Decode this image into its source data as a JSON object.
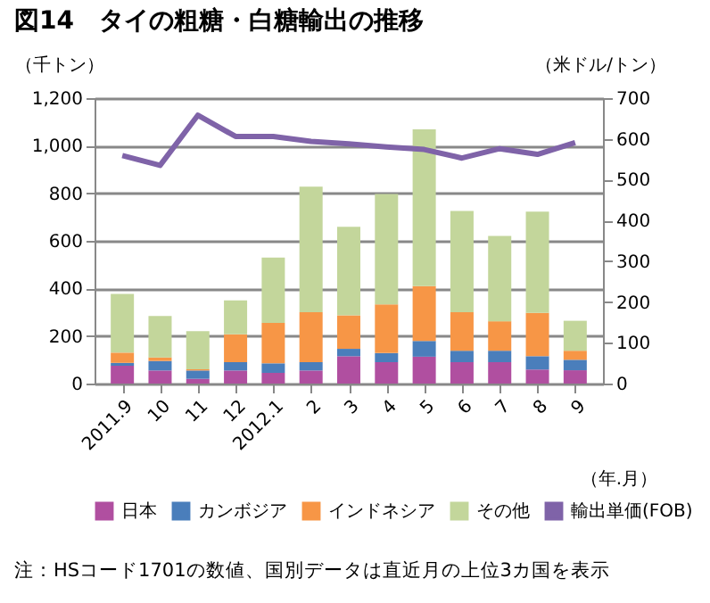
{
  "chart_data": {
    "type": "bar",
    "stacked": true,
    "title": "図14　タイの粗糖・白糖輸出の推移",
    "ylabel": "（千トン）",
    "y2label": "（米ドル/トン）",
    "xlabel": "（年.月）",
    "categories": [
      "2011.9",
      "10",
      "11",
      "12",
      "2012.1",
      "2",
      "3",
      "4",
      "5",
      "6",
      "7",
      "8",
      "9"
    ],
    "series": [
      {
        "name": "日本",
        "color": "#b04fa0",
        "values": [
          75,
          55,
          20,
          55,
          45,
          55,
          115,
          90,
          113,
          90,
          90,
          59,
          56
        ]
      },
      {
        "name": "カンボジア",
        "color": "#4a7ebb",
        "values": [
          12,
          40,
          35,
          35,
          40,
          35,
          31,
          38,
          66,
          48,
          48,
          56,
          44
        ]
      },
      {
        "name": "インドネシア",
        "color": "#f79646",
        "values": [
          43,
          15,
          5,
          117,
          170,
          210,
          141,
          205,
          231,
          162,
          124,
          182,
          38
        ]
      },
      {
        "name": "その他",
        "color": "#c3d69b",
        "values": [
          247,
          174,
          160,
          143,
          275,
          528,
          372,
          464,
          659,
          426,
          359,
          426,
          126
        ]
      },
      {
        "name": "輸出単価(FOB)",
        "color": "#7f63a8",
        "type": "line",
        "axis": "y2",
        "values": [
          559,
          535,
          658,
          606,
          606,
          594,
          588,
          580,
          574,
          553,
          576,
          562,
          591
        ]
      }
    ],
    "ylim": [
      0,
      1200
    ],
    "yticks": [
      {
        "value": 0,
        "label": "0"
      },
      {
        "value": 200,
        "label": "200"
      },
      {
        "value": 400,
        "label": "400"
      },
      {
        "value": 600,
        "label": "600"
      },
      {
        "value": 800,
        "label": "800"
      },
      {
        "value": 1000,
        "label": "1,000"
      },
      {
        "value": 1200,
        "label": "1,200"
      }
    ],
    "y2lim": [
      0,
      700
    ],
    "y2ticks": [
      0,
      100,
      200,
      300,
      400,
      500,
      600,
      700
    ],
    "grid": "y",
    "legend": "bottom",
    "annotations": [
      "注：HSコード1701の数値、国別データは直近月の上位3カ国を表示"
    ]
  }
}
